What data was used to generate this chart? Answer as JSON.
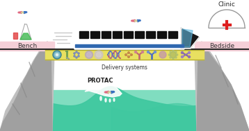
{
  "bg_color": "#ffffff",
  "cliff_color": "#c0c0c0",
  "cliff_shadow": "#a0a0a0",
  "cliff_dark": "#888888",
  "bridge_color": "#e8e060",
  "bench_color": "#f5d0d8",
  "bedside_color": "#f5d0d8",
  "wave_teal": "#40c8a0",
  "wave_light": "#80ddc0",
  "wave_foam": "#c8f0e0",
  "train_body": "#f4f4f4",
  "train_window": "#111111",
  "train_blue": "#60b8e0",
  "train_stripe": "#3068b0",
  "bench_text": "Bench",
  "bedside_text": "Bedside",
  "delivery_text": "Delivery systems",
  "protac_text": "PROTAC",
  "clinic_text": "Clinic",
  "red_cross": "#dd2020",
  "pink": "#e06880",
  "blue": "#3870c0",
  "gray_outline": "#999999"
}
